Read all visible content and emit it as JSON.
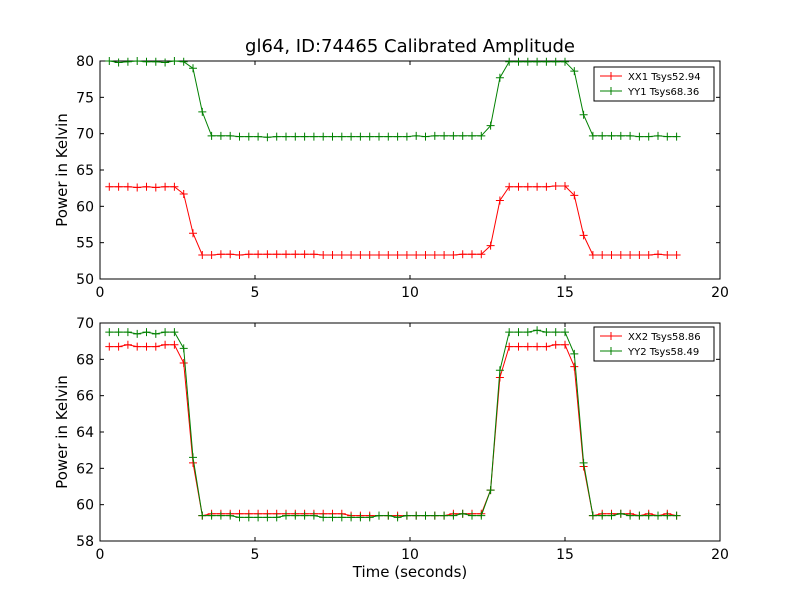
{
  "figure_title": "gl64, ID:74465 Calibrated Amplitude",
  "colors": {
    "red_series": "#ff0000",
    "green_series": "#008000"
  },
  "chart_data": [
    {
      "type": "line",
      "title": "gl64, ID:74465 Calibrated Amplitude",
      "xlabel": "",
      "ylabel": "Power in Kelvin",
      "xlim": [
        0,
        20
      ],
      "ylim": [
        50,
        80
      ],
      "xticks": [
        0,
        5,
        10,
        15,
        20
      ],
      "yticks": [
        50,
        55,
        60,
        65,
        70,
        75,
        80
      ],
      "grid": false,
      "legend_position": "top-right",
      "x": [
        0.3,
        0.6,
        0.9,
        1.2,
        1.5,
        1.8,
        2.1,
        2.4,
        2.7,
        3.0,
        3.3,
        3.6,
        3.9,
        4.2,
        4.5,
        4.8,
        5.1,
        5.4,
        5.7,
        6.0,
        6.3,
        6.6,
        6.9,
        7.2,
        7.5,
        7.8,
        8.1,
        8.4,
        8.7,
        9.0,
        9.3,
        9.6,
        9.9,
        10.2,
        10.5,
        10.8,
        11.1,
        11.4,
        11.7,
        12.0,
        12.3,
        12.6,
        12.9,
        13.2,
        13.5,
        13.8,
        14.1,
        14.4,
        14.7,
        15.0,
        15.3,
        15.6,
        15.9,
        16.2,
        16.5,
        16.8,
        17.1,
        17.4,
        17.7,
        18.0,
        18.3,
        18.6
      ],
      "series": [
        {
          "name": "XX1 Tsys52.94",
          "color": "#ff0000",
          "values": [
            62.7,
            62.7,
            62.7,
            62.6,
            62.7,
            62.6,
            62.7,
            62.7,
            61.7,
            56.3,
            53.3,
            53.3,
            53.4,
            53.4,
            53.3,
            53.4,
            53.4,
            53.4,
            53.4,
            53.4,
            53.4,
            53.4,
            53.4,
            53.3,
            53.3,
            53.3,
            53.3,
            53.3,
            53.3,
            53.3,
            53.3,
            53.3,
            53.3,
            53.3,
            53.3,
            53.3,
            53.3,
            53.3,
            53.4,
            53.4,
            53.4,
            54.6,
            60.8,
            62.7,
            62.7,
            62.7,
            62.7,
            62.7,
            62.8,
            62.8,
            61.5,
            56.0,
            53.3,
            53.3,
            53.3,
            53.3,
            53.3,
            53.3,
            53.3,
            53.4,
            53.3,
            53.3
          ]
        },
        {
          "name": "YY1 Tsys68.36",
          "color": "#008000",
          "values": [
            80.0,
            79.8,
            79.9,
            80.0,
            79.9,
            79.9,
            79.8,
            80.0,
            79.9,
            79.0,
            73.0,
            69.7,
            69.7,
            69.7,
            69.6,
            69.6,
            69.6,
            69.5,
            69.6,
            69.6,
            69.6,
            69.6,
            69.6,
            69.6,
            69.6,
            69.6,
            69.6,
            69.6,
            69.6,
            69.6,
            69.6,
            69.6,
            69.6,
            69.7,
            69.6,
            69.7,
            69.7,
            69.7,
            69.7,
            69.7,
            69.7,
            71.1,
            77.7,
            79.9,
            79.9,
            79.9,
            79.9,
            79.9,
            79.9,
            79.9,
            78.6,
            72.6,
            69.7,
            69.7,
            69.7,
            69.7,
            69.7,
            69.6,
            69.6,
            69.7,
            69.6,
            69.6
          ]
        }
      ]
    },
    {
      "type": "line",
      "title": "",
      "xlabel": "Time (seconds)",
      "ylabel": "Power in Kelvin",
      "xlim": [
        0,
        20
      ],
      "ylim": [
        58,
        70
      ],
      "xticks": [
        0,
        5,
        10,
        15,
        20
      ],
      "yticks": [
        58,
        60,
        62,
        64,
        66,
        68,
        70
      ],
      "grid": false,
      "legend_position": "top-right",
      "x": [
        0.3,
        0.6,
        0.9,
        1.2,
        1.5,
        1.8,
        2.1,
        2.4,
        2.7,
        3.0,
        3.3,
        3.6,
        3.9,
        4.2,
        4.5,
        4.8,
        5.1,
        5.4,
        5.7,
        6.0,
        6.3,
        6.6,
        6.9,
        7.2,
        7.5,
        7.8,
        8.1,
        8.4,
        8.7,
        9.0,
        9.3,
        9.6,
        9.9,
        10.2,
        10.5,
        10.8,
        11.1,
        11.4,
        11.7,
        12.0,
        12.3,
        12.6,
        12.9,
        13.2,
        13.5,
        13.8,
        14.1,
        14.4,
        14.7,
        15.0,
        15.3,
        15.6,
        15.9,
        16.2,
        16.5,
        16.8,
        17.1,
        17.4,
        17.7,
        18.0,
        18.3,
        18.6
      ],
      "series": [
        {
          "name": "XX2 Tsys58.86",
          "color": "#ff0000",
          "values": [
            68.7,
            68.7,
            68.8,
            68.7,
            68.7,
            68.7,
            68.8,
            68.8,
            67.8,
            62.3,
            59.4,
            59.5,
            59.5,
            59.5,
            59.5,
            59.5,
            59.5,
            59.5,
            59.5,
            59.5,
            59.5,
            59.5,
            59.5,
            59.5,
            59.5,
            59.5,
            59.4,
            59.4,
            59.4,
            59.4,
            59.4,
            59.4,
            59.4,
            59.4,
            59.4,
            59.4,
            59.4,
            59.5,
            59.5,
            59.5,
            59.5,
            60.8,
            67.0,
            68.7,
            68.7,
            68.7,
            68.7,
            68.7,
            68.8,
            68.8,
            67.6,
            62.1,
            59.4,
            59.5,
            59.5,
            59.5,
            59.5,
            59.4,
            59.5,
            59.4,
            59.5,
            59.4
          ]
        },
        {
          "name": "YY2 Tsys58.49",
          "color": "#008000",
          "values": [
            69.5,
            69.5,
            69.5,
            69.4,
            69.5,
            69.4,
            69.5,
            69.5,
            68.6,
            62.6,
            59.4,
            59.4,
            59.4,
            59.4,
            59.3,
            59.3,
            59.3,
            59.3,
            59.3,
            59.4,
            59.4,
            59.4,
            59.4,
            59.3,
            59.3,
            59.3,
            59.3,
            59.3,
            59.3,
            59.4,
            59.4,
            59.3,
            59.4,
            59.4,
            59.4,
            59.4,
            59.4,
            59.4,
            59.5,
            59.4,
            59.4,
            60.8,
            67.4,
            69.5,
            69.5,
            69.5,
            69.6,
            69.5,
            69.5,
            69.5,
            68.3,
            62.3,
            59.4,
            59.4,
            59.4,
            59.5,
            59.4,
            59.4,
            59.4,
            59.4,
            59.4,
            59.4
          ]
        }
      ]
    }
  ]
}
